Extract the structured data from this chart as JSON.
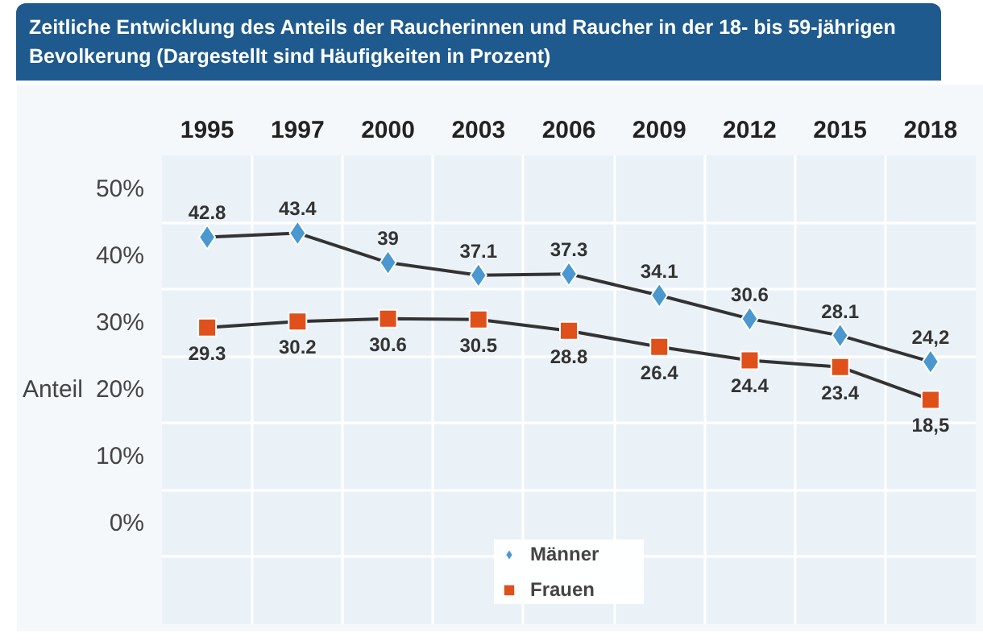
{
  "chart_data": {
    "type": "line",
    "title": "Zeitliche Entwicklung des Anteils der Raucherinnen und Raucher in der 18- bis 59-jährigen Bevolkerung (Dargestellt sind Häufigkeiten in Prozent)",
    "ylabel": "Anteil",
    "categories": [
      "1995",
      "1997",
      "2000",
      "2003",
      "2006",
      "2009",
      "2012",
      "2015",
      "2018"
    ],
    "series": [
      {
        "name": "Männer",
        "color": "#4a98cf",
        "marker": "diamond",
        "values": [
          42.8,
          43.4,
          39,
          37.1,
          37.3,
          34.1,
          30.6,
          28.1,
          24.2
        ],
        "value_labels": [
          "42.8",
          "43.4",
          "39",
          "37.1",
          "37.3",
          "34.1",
          "30.6",
          "28.1",
          "24,2"
        ]
      },
      {
        "name": "Frauen",
        "color": "#e0501a",
        "marker": "square",
        "values": [
          29.3,
          30.2,
          30.6,
          30.5,
          28.8,
          26.4,
          24.4,
          23.4,
          18.5
        ],
        "value_labels": [
          "29.3",
          "30.2",
          "30.6",
          "30.5",
          "28.8",
          "26.4",
          "24.4",
          "23.4",
          "18,5"
        ]
      }
    ],
    "ylim": [
      -15,
      55
    ],
    "yticks": [
      {
        "value": 0,
        "label": "0%"
      },
      {
        "value": 10,
        "label": "10%"
      },
      {
        "value": 20,
        "label": "20%"
      },
      {
        "value": 30,
        "label": "30%"
      },
      {
        "value": 40,
        "label": "40%"
      },
      {
        "value": 50,
        "label": "50%"
      }
    ],
    "grid": true,
    "legend": "bottom",
    "line_style": "solid"
  }
}
